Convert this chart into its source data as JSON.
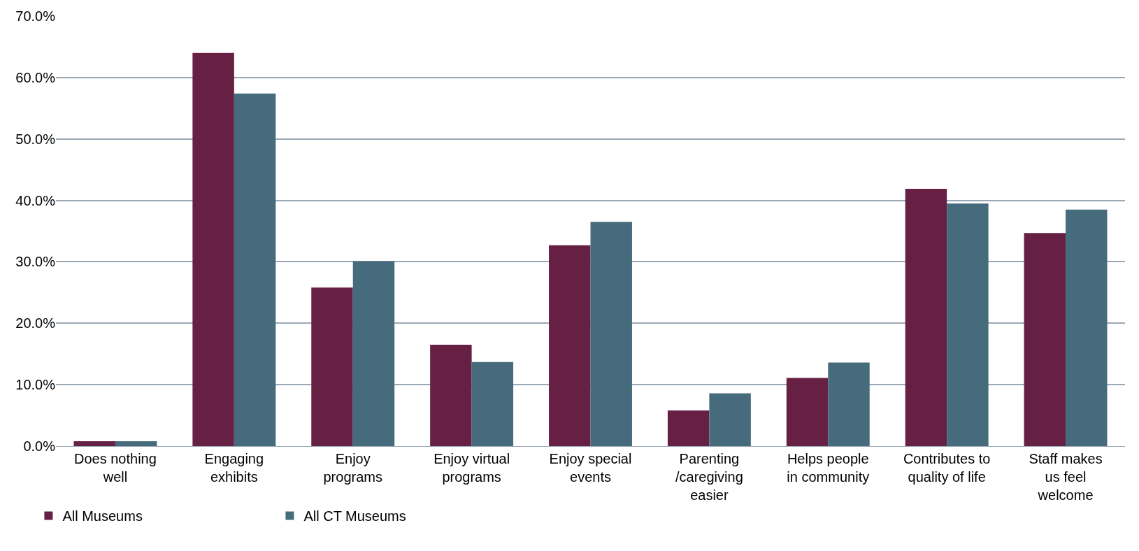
{
  "chart_data": {
    "type": "bar",
    "categories": [
      "Does nothing\nwell",
      "Engaging\nexhibits",
      "Enjoy\nprograms",
      "Enjoy virtual\nprograms",
      "Enjoy special\nevents",
      "Parenting\n/caregiving\neasier",
      "Helps people\nin community",
      "Contributes to\nquality of life",
      "Staff makes\nus feel\nwelcome"
    ],
    "series": [
      {
        "name": "All Museums",
        "color": "#662044",
        "values": [
          0.8,
          64.0,
          25.8,
          16.5,
          32.7,
          5.8,
          11.1,
          41.9,
          34.7
        ]
      },
      {
        "name": "All CT Museums",
        "color": "#466b7c",
        "values": [
          0.8,
          57.4,
          30.1,
          13.7,
          36.5,
          8.6,
          13.6,
          39.5,
          38.5
        ]
      }
    ],
    "ylim": [
      0,
      70
    ],
    "yticks": [
      {
        "value": 0,
        "label": "0.0%"
      },
      {
        "value": 10,
        "label": "10.0%"
      },
      {
        "value": 20,
        "label": "20.0%"
      },
      {
        "value": 30,
        "label": "30.0%"
      },
      {
        "value": 40,
        "label": "40.0%"
      },
      {
        "value": 50,
        "label": "50.0%"
      },
      {
        "value": 60,
        "label": "60.0%"
      },
      {
        "value": 70,
        "label": "70.0%"
      }
    ],
    "grid": "y",
    "legend": "bottom left"
  }
}
